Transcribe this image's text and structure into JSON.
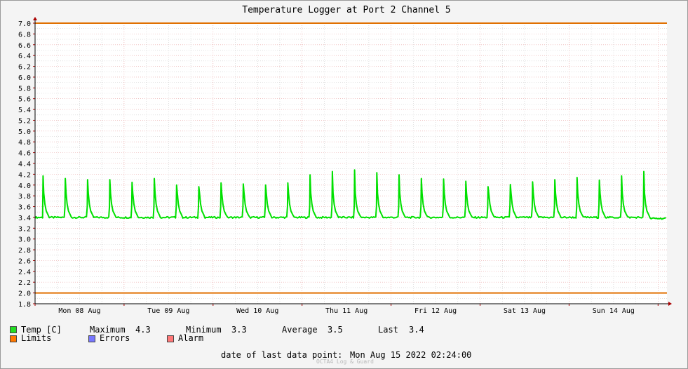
{
  "chart_data": {
    "type": "line",
    "title": "Temperature Logger at Port 2 Channel 5",
    "ylim": [
      1.8,
      7.0
    ],
    "y_ticks": [
      "7.0",
      "6.8",
      "6.6",
      "6.4",
      "6.2",
      "6.0",
      "5.8",
      "5.6",
      "5.4",
      "5.2",
      "5.0",
      "4.8",
      "4.6",
      "4.4",
      "4.2",
      "4.0",
      "3.8",
      "3.6",
      "3.4",
      "3.2",
      "3.0",
      "2.8",
      "2.6",
      "2.4",
      "2.2",
      "2.0",
      "1.8"
    ],
    "x_labels": [
      "Mon 08 Aug",
      "Tue 09 Aug",
      "Wed 10 Aug",
      "Thu 11 Aug",
      "Fri 12 Aug",
      "Sat 13 Aug",
      "Sun 14 Aug"
    ],
    "x_range_days": [
      0,
      7.1
    ],
    "baseline": 3.4,
    "peak_day_positions": [
      0.09,
      0.34,
      0.59,
      0.84
    ],
    "peaks": [
      4.17,
      4.12,
      4.1,
      4.1,
      4.05,
      4.12,
      4.0,
      3.97,
      4.04,
      4.02,
      4.0,
      4.04,
      4.19,
      4.25,
      4.28,
      4.23,
      4.19,
      4.12,
      4.11,
      4.07,
      3.97,
      4.01,
      4.06,
      4.1,
      4.14,
      4.09,
      4.17,
      4.25
    ],
    "limits": {
      "upper": 7.0,
      "lower": 2.0
    },
    "series": [
      {
        "name": "Temp [C]",
        "color": "#00e000"
      },
      {
        "name": "Limits",
        "color": "#e07000"
      }
    ]
  },
  "legend": {
    "temp": "Temp [C]",
    "maximum_label": "Maximum",
    "maximum_value": "4.3",
    "minimum_label": "Minimum",
    "minimum_value": "3.3",
    "average_label": "Average",
    "average_value": "3.5",
    "last_label": "Last",
    "last_value": "3.4",
    "limits": "Limits",
    "errors": "Errors",
    "alarm": "Alarm",
    "colors": {
      "temp": "#22dd22",
      "limits": "#ff7700",
      "errors": "#7777ff",
      "alarm": "#ff7777"
    }
  },
  "footer": {
    "last_point_label": "date of last data point:",
    "last_point_value": "Mon Aug 15 2022 02:24:00",
    "watermark": "OCTA4 Log & Guard"
  }
}
